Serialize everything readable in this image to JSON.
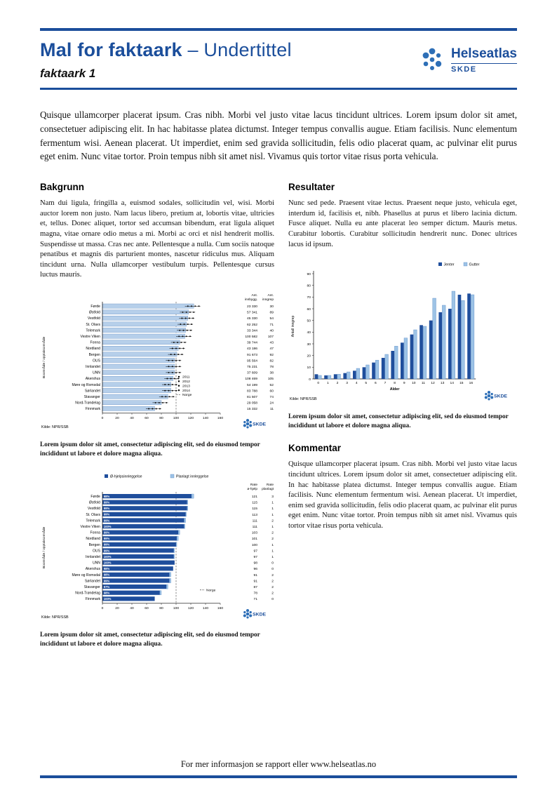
{
  "colors": {
    "brand_blue": "#1b4e9b",
    "bar_dark": "#1f4e9c",
    "bar_light": "#9dc3e6",
    "bar_pale": "#b6cfea",
    "logo_blue": "#2e6fb7"
  },
  "header": {
    "title_main": "Mal for faktaark",
    "title_sub": "– Undertittel",
    "sheet_label": "faktaark 1",
    "logo_name": "Helseatlas",
    "logo_org": "SKDE"
  },
  "intro": "Quisque ullamcorper placerat ipsum. Cras nibh. Morbi vel justo vitae lacus tincidunt ultrices. Lorem ipsum dolor sit amet, consectetuer adipiscing elit. In hac habitasse platea dictumst. Integer tempus convallis augue. Etiam facilisis. Nunc elementum fermentum wisi. Aenean placerat. Ut imperdiet, enim sed gravida sollicitudin, felis odio placerat quam, ac pulvinar elit purus eget enim. Nunc vitae tortor. Proin tempus nibh sit amet nisl. Vivamus quis tortor vitae risus porta vehicula.",
  "sections": {
    "bakgrunn": {
      "heading": "Bakgrunn",
      "body": "Nam dui ligula, fringilla a, euismod sodales, sollicitudin vel, wisi. Morbi auctor lorem non justo. Nam lacus libero, pretium at, lobortis vitae, ultricies et, tellus. Donec aliquet, tortor sed accumsan bibendum, erat ligula aliquet magna, vitae ornare odio metus a mi. Morbi ac orci et nisl hendrerit mollis. Suspendisse ut massa. Cras nec ante. Pellentesque a nulla. Cum sociis natoque penatibus et magnis dis parturient montes, nascetur ridiculus mus. Aliquam tincidunt urna. Nulla ullamcorper vestibulum turpis. Pellentesque cursus luctus mauris."
    },
    "resultater": {
      "heading": "Resultater",
      "body": "Nunc sed pede. Praesent vitae lectus. Praesent neque justo, vehicula eget, interdum id, facilisis et, nibh. Phasellus at purus et libero lacinia dictum. Fusce aliquet. Nulla eu ante placerat leo semper dictum. Mauris metus. Curabitur lobortis. Curabitur sollicitudin hendrerit nunc. Donec ultrices lacus id ipsum."
    },
    "kommentar": {
      "heading": "Kommentar",
      "body": "Quisque ullamcorper placerat ipsum. Cras nibh. Morbi vel justo vitae lacus tincidunt ultrices. Lorem ipsum dolor sit amet, consectetuer adipiscing elit. In hac habitasse platea dictumst. Integer tempus convallis augue. Etiam facilisis. Nunc elementum fermentum wisi. Aenean placerat. Ut imperdiet, enim sed gravida sollicitudin, felis odio placerat quam, ac pulvinar elit purus eget enim. Nunc vitae tortor. Proin tempus nibh sit amet nisl. Vivamus quis tortor vitae risus porta vehicula."
    }
  },
  "captions": {
    "chart1": "Lorem ipsum dolor sit amet, consectetur adipiscing elit, sed do eiusmod tempor incididunt ut labore et dolore magna aliqua.",
    "chart2": "Lorem ipsum dolor sit amet, consectetur adipiscing elit, sed do eiusmod tempor incididunt ut labore et dolore magna aliqua.",
    "chart3": "Lorem ipsum dolor sit amet, consectetur adipiscing elit, sed do eiusmod tempor incididunt ut labore et dolore magna aliqua."
  },
  "chart_data": [
    {
      "type": "bar",
      "orientation": "horizontal",
      "ylabel": "Boområde / opptaksområde",
      "xlim": [
        0,
        160
      ],
      "xticks": [
        0,
        20,
        40,
        60,
        80,
        100,
        120,
        140,
        160
      ],
      "legend_years": [
        "2011",
        "2012",
        "2013",
        "2014"
      ],
      "legend_norge": "Norge",
      "norge_value": 100,
      "source": "Kilde: NPR/SSB",
      "skde_label": "SKDE",
      "col_headers": [
        "Ant. innbygg.",
        "Ant. inngrep"
      ],
      "rows": [
        {
          "name": "Førde",
          "rate": 124,
          "innbygg": "23 330",
          "inngrep": "30"
        },
        {
          "name": "Østfold",
          "rate": 117,
          "innbygg": "57 341",
          "inngrep": "89"
        },
        {
          "name": "Vestfold",
          "rate": 116,
          "innbygg": "45 330",
          "inngrep": "54"
        },
        {
          "name": "St. Olavs",
          "rate": 114,
          "innbygg": "62 252",
          "inngrep": "71"
        },
        {
          "name": "Telemark",
          "rate": 113,
          "innbygg": "33 344",
          "inngrep": "40"
        },
        {
          "name": "Vestre Viken",
          "rate": 112,
          "innbygg": "100 582",
          "inngrep": "107"
        },
        {
          "name": "Fonna",
          "rate": 105,
          "innbygg": "39 744",
          "inngrep": "43"
        },
        {
          "name": "Nordland",
          "rate": 103,
          "innbygg": "43 186",
          "inngrep": "47"
        },
        {
          "name": "Bergen",
          "rate": 101,
          "innbygg": "91 673",
          "inngrep": "92"
        },
        {
          "name": "OUS",
          "rate": 98,
          "innbygg": "95 564",
          "inngrep": "82"
        },
        {
          "name": "Innlandet",
          "rate": 98,
          "innbygg": "75 231",
          "inngrep": "78"
        },
        {
          "name": "UNN",
          "rate": 98,
          "innbygg": "37 609",
          "inngrep": "38"
        },
        {
          "name": "Akershus",
          "rate": 96,
          "innbygg": "108 469",
          "inngrep": "105"
        },
        {
          "name": "Møre og Romsdal",
          "rate": 93,
          "innbygg": "54 199",
          "inngrep": "52"
        },
        {
          "name": "Sørlandet",
          "rate": 93,
          "innbygg": "83 788",
          "inngrep": "60"
        },
        {
          "name": "Stavanger",
          "rate": 89,
          "innbygg": "81 507",
          "inngrep": "74"
        },
        {
          "name": "Nord-Trøndelag",
          "rate": 80,
          "innbygg": "29 058",
          "inngrep": "24"
        },
        {
          "name": "Finnmark",
          "rate": 71,
          "innbygg": "15 332",
          "inngrep": "11"
        }
      ]
    },
    {
      "type": "bar",
      "orientation": "vertical",
      "categories": [
        "0",
        "1",
        "2",
        "3",
        "4",
        "5",
        "6",
        "7",
        "8",
        "9",
        "10",
        "11",
        "12",
        "13",
        "14",
        "15",
        "16"
      ],
      "series": [
        {
          "name": "Jenter",
          "values": [
            4,
            3,
            4,
            5,
            7,
            10,
            14,
            18,
            24,
            31,
            38,
            46,
            50,
            57,
            60,
            72,
            73
          ]
        },
        {
          "name": "Gutter",
          "values": [
            3,
            3,
            4,
            6,
            9,
            12,
            16,
            21,
            28,
            35,
            42,
            45,
            69,
            63,
            75,
            67,
            72
          ]
        }
      ],
      "xlabel": "Alder",
      "ylabel": "Antall inngrep",
      "ylim": [
        0,
        90
      ],
      "yticks": [
        0,
        10,
        20,
        30,
        40,
        50,
        60,
        70,
        80,
        90
      ],
      "source": "Kilde: NPR/SSB",
      "skde_label": "SKDE"
    },
    {
      "type": "bar",
      "orientation": "horizontal",
      "series_labels": [
        "Ø-hjelpsinnleggelse",
        "Planlagt innleggelse"
      ],
      "ylabel": "Boområde / opptaksområde",
      "xlim": [
        0,
        160
      ],
      "xticks": [
        0,
        20,
        40,
        60,
        80,
        100,
        120,
        140,
        160
      ],
      "norge_value": 100,
      "legend_norge": "Norge",
      "source": "Kilde: NPR/SSB",
      "skde_label": "SKDE",
      "col_headers": [
        "Rate ø-hjelp",
        "Rate planlagt"
      ],
      "rows": [
        {
          "name": "Førde",
          "pct": "98%",
          "rate_ohjelp": 121,
          "rate_planlagt": 3
        },
        {
          "name": "Østfold",
          "pct": "99%",
          "rate_ohjelp": 115,
          "rate_planlagt": 1
        },
        {
          "name": "Vestfold",
          "pct": "99%",
          "rate_ohjelp": 115,
          "rate_planlagt": 1
        },
        {
          "name": "St. Olavs",
          "pct": "99%",
          "rate_ohjelp": 113,
          "rate_planlagt": 1
        },
        {
          "name": "Telemark",
          "pct": "99%",
          "rate_ohjelp": 111,
          "rate_planlagt": 2
        },
        {
          "name": "Vestre Viken",
          "pct": "100%",
          "rate_ohjelp": 111,
          "rate_planlagt": 1
        },
        {
          "name": "Fonna",
          "pct": "99%",
          "rate_ohjelp": 103,
          "rate_planlagt": 2
        },
        {
          "name": "Nordland",
          "pct": "99%",
          "rate_ohjelp": 101,
          "rate_planlagt": 2
        },
        {
          "name": "Bergen",
          "pct": "99%",
          "rate_ohjelp": 100,
          "rate_planlagt": 1
        },
        {
          "name": "OUS",
          "pct": "99%",
          "rate_ohjelp": 97,
          "rate_planlagt": 1
        },
        {
          "name": "Innlandet",
          "pct": "100%",
          "rate_ohjelp": 97,
          "rate_planlagt": 1
        },
        {
          "name": "UNN",
          "pct": "100%",
          "rate_ohjelp": 98,
          "rate_planlagt": 0
        },
        {
          "name": "Akershus",
          "pct": "98%",
          "rate_ohjelp": 96,
          "rate_planlagt": 0
        },
        {
          "name": "Møre og Romsdal",
          "pct": "98%",
          "rate_ohjelp": 91,
          "rate_planlagt": 2
        },
        {
          "name": "Sørlandet",
          "pct": "99%",
          "rate_ohjelp": 91,
          "rate_planlagt": 2
        },
        {
          "name": "Stavanger",
          "pct": "97%",
          "rate_ohjelp": 87,
          "rate_planlagt": 2
        },
        {
          "name": "Nord-Trøndelag",
          "pct": "98%",
          "rate_ohjelp": 78,
          "rate_planlagt": 2
        },
        {
          "name": "Finnmark",
          "pct": "100%",
          "rate_ohjelp": 71,
          "rate_planlagt": 0
        }
      ]
    }
  ],
  "footer": {
    "text": "For mer informasjon se rapport eller www.helseatlas.no"
  }
}
